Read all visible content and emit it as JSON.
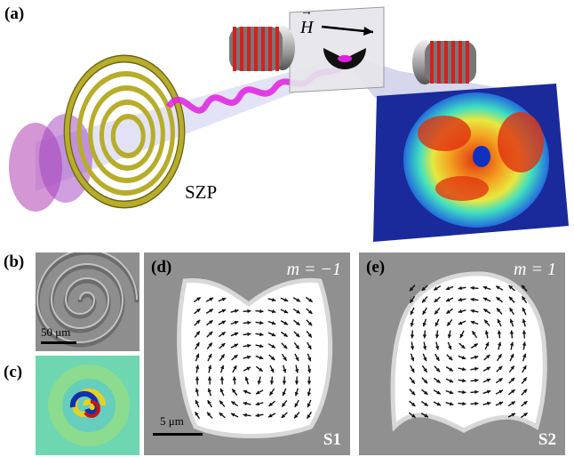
{
  "figure": {
    "panel_labels": {
      "a": "(a)",
      "b": "(b)",
      "c": "(c)",
      "d": "(d)",
      "e": "(e)"
    },
    "field_label": "H",
    "lens_label": "SZP",
    "scalebar_b": "50 μm",
    "scalebar_d": "5 μm",
    "mode_d": "m = −1",
    "mode_e": "m = 1",
    "sample_d": "S1",
    "sample_e": "S2",
    "colors": {
      "spiral_gold": "#b7ad2a",
      "beam_magenta": "#e020e0",
      "coil_red": "#d42020",
      "micrograph_gray": "#8e8e8e"
    }
  }
}
